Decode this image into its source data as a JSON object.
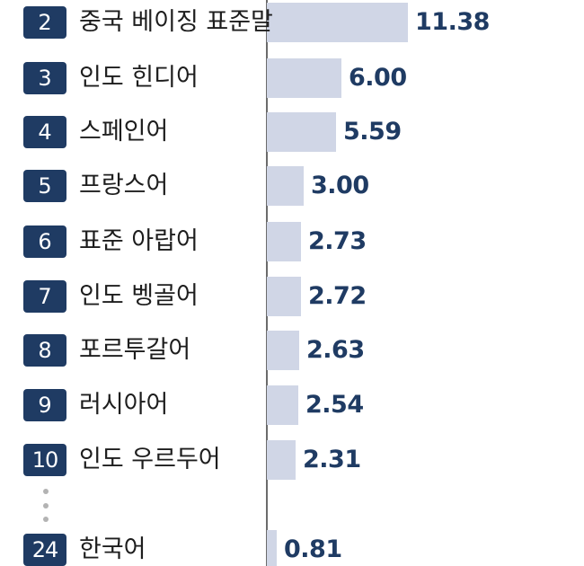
{
  "chart_data": {
    "type": "bar",
    "orientation": "horizontal",
    "ranks": [
      "2",
      "3",
      "4",
      "5",
      "6",
      "7",
      "8",
      "9",
      "10",
      "24"
    ],
    "categories": [
      "중국 베이징 표준말",
      "인도 힌디어",
      "스페인어",
      "프랑스어",
      "표준 아랍어",
      "인도 벵골어",
      "포르투갈어",
      "러시아어",
      "인도 우르두어",
      "한국어"
    ],
    "values": [
      11.38,
      6.0,
      5.59,
      3.0,
      2.73,
      2.72,
      2.63,
      2.54,
      2.31,
      0.81
    ],
    "value_labels": [
      "11.38",
      "6.00",
      "5.59",
      "3.00",
      "2.73",
      "2.72",
      "2.63",
      "2.54",
      "2.31",
      "0.81"
    ],
    "gap_after_index": 8,
    "colors": {
      "bar": "#d0d6e6",
      "rank_badge": "#1f3b63",
      "value_text": "#1f3b63",
      "axis": "#6b6b6b"
    }
  }
}
